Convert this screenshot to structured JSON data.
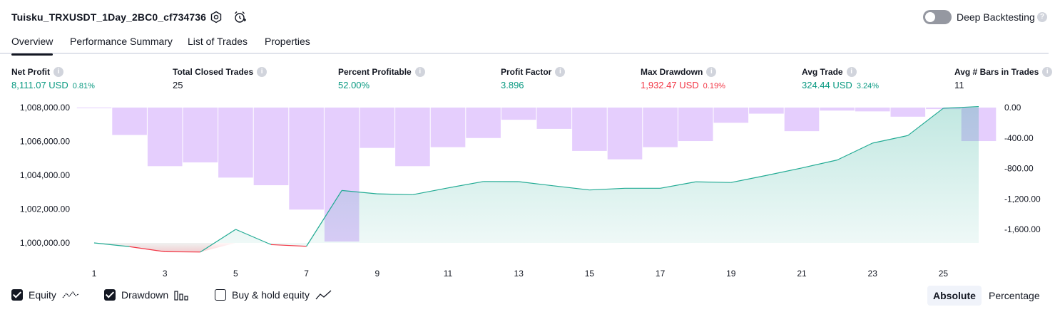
{
  "header": {
    "title": "Tuisku_TRXUSDT_1Day_2BC0_cf734736",
    "deep_backtesting_label": "Deep Backtesting",
    "deep_backtesting_enabled": false
  },
  "tabs": [
    {
      "label": "Overview",
      "active": true
    },
    {
      "label": "Performance Summary",
      "active": false
    },
    {
      "label": "List of Trades",
      "active": false
    },
    {
      "label": "Properties",
      "active": false
    }
  ],
  "metrics": [
    {
      "label": "Net Profit",
      "value": "8,111.07 USD",
      "pct": "0.81%",
      "color": "green"
    },
    {
      "label": "Total Closed Trades",
      "value": "25",
      "pct": "",
      "color": "dark"
    },
    {
      "label": "Percent Profitable",
      "value": "52.00%",
      "pct": "",
      "color": "green"
    },
    {
      "label": "Profit Factor",
      "value": "3.896",
      "pct": "",
      "color": "green"
    },
    {
      "label": "Max Drawdown",
      "value": "1,932.47 USD",
      "pct": "0.19%",
      "color": "red"
    },
    {
      "label": "Avg Trade",
      "value": "324.44 USD",
      "pct": "3.24%",
      "color": "green"
    },
    {
      "label": "Avg # Bars in Trades",
      "value": "11",
      "pct": "",
      "color": "dark"
    }
  ],
  "chart_data": {
    "type": "area",
    "x_ticks": [
      "1",
      "3",
      "5",
      "7",
      "9",
      "11",
      "13",
      "15",
      "17",
      "19",
      "21",
      "23",
      "25"
    ],
    "left_axis": {
      "ticks": [
        "1,008,000.00",
        "1,006,000.00",
        "1,004,000.00",
        "1,002,000.00",
        "1,000,000.00"
      ],
      "ylim": [
        1000000,
        1008000
      ]
    },
    "right_axis": {
      "ticks": [
        "0.00",
        "-400.00",
        "-800.00",
        "-1,200.00",
        "-1,600.00"
      ],
      "ylim": [
        -1600,
        0
      ]
    },
    "series": [
      {
        "name": "Equity",
        "x": [
          1,
          2,
          3,
          4,
          5,
          6,
          7,
          8,
          9,
          10,
          11,
          12,
          13,
          14,
          15,
          16,
          17,
          18,
          19,
          20,
          21,
          22,
          23,
          24,
          25,
          26
        ],
        "values": [
          1000000,
          999780,
          999480,
          999460,
          1000800,
          999900,
          999800,
          1003100,
          1002900,
          1002850,
          1003250,
          1003630,
          1003620,
          1003370,
          1003130,
          1003230,
          1003230,
          1003610,
          1003570,
          1003990,
          1004430,
          1004900,
          1005900,
          1006350,
          1007960,
          1008060
        ]
      },
      {
        "name": "Drawdown",
        "x": [
          1,
          2,
          3,
          4,
          5,
          6,
          7,
          8,
          9,
          10,
          11,
          12,
          13,
          14,
          15,
          16,
          17,
          18,
          19,
          20,
          21,
          22,
          23,
          24,
          25,
          26
        ],
        "values": [
          -5,
          -360,
          -770,
          -720,
          -920,
          -1020,
          -1340,
          -1760,
          -530,
          -770,
          -520,
          -400,
          -160,
          -280,
          -570,
          -680,
          -520,
          -440,
          -200,
          -80,
          -310,
          -40,
          -50,
          -120,
          -20,
          -440
        ]
      }
    ]
  },
  "legend": [
    {
      "label": "Equity",
      "checked": true,
      "icon": "equity-line-icon"
    },
    {
      "label": "Drawdown",
      "checked": true,
      "icon": "drawdown-bars-icon"
    },
    {
      "label": "Buy & hold equity",
      "checked": false,
      "icon": "buy-hold-line-icon"
    }
  ],
  "view_mode": {
    "options": [
      "Absolute",
      "Percentage"
    ],
    "selected": "Absolute"
  },
  "colors": {
    "equity": "#22ab94",
    "equity_negative": "#f23645",
    "drawdown": "#e1c5fd",
    "positive": "#089981",
    "negative": "#f23645"
  }
}
